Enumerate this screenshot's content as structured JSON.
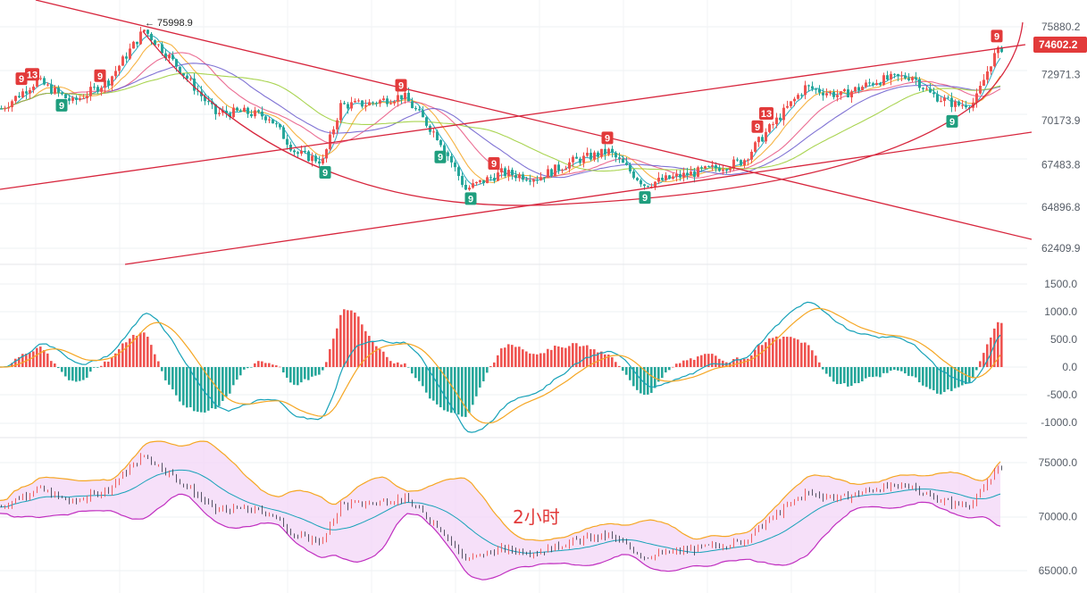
{
  "chart_data": {
    "type": "candlestick",
    "timeframe_label": "2小时",
    "current_price": "74602.2",
    "peak_label": "75998.9",
    "colors": {
      "up": "#ef5350",
      "down": "#26a69a",
      "trendline": "#d7263d",
      "ma_short": "#17a2b8",
      "ma_mid": "#f5a623",
      "ma_long1": "#e75480",
      "ma_long2": "#6a5acd",
      "ma_long3": "#9acd32",
      "bb_fill": "#f3d6f7",
      "bb_upper": "#f5a623",
      "bb_lower": "#c02fc0",
      "bb_mid": "#17a2b8"
    },
    "price_panel": {
      "y_ticks": [
        "75880.2",
        "72971.3",
        "70173.9",
        "67483.8",
        "64896.8",
        "62409.9"
      ],
      "y_tick_values": [
        75880.2,
        72971.3,
        70173.9,
        67483.8,
        64896.8,
        62409.9
      ]
    },
    "macd_panel": {
      "y_ticks": [
        "1500.0",
        "1000.0",
        "500.0",
        "0.0",
        "-500.0",
        "-1000.0"
      ],
      "y_tick_values": [
        1500,
        1000,
        500,
        0,
        -500,
        -1000
      ]
    },
    "boll_panel": {
      "y_ticks": [
        "75000.0",
        "70000.0",
        "65000.0"
      ],
      "y_tick_values": [
        75000,
        70000,
        65000
      ]
    },
    "anchors": {
      "x": [
        0,
        40,
        80,
        120,
        160,
        200,
        240,
        270,
        300,
        330,
        360,
        380,
        410,
        450,
        490,
        520,
        560,
        600,
        640,
        680,
        720,
        760,
        800,
        830,
        860,
        900,
        940,
        980,
        1020,
        1040,
        1070,
        1090,
        1110,
        1120
      ],
      "close": [
        70900,
        72600,
        71300,
        72600,
        75700,
        73300,
        70600,
        70700,
        70400,
        68200,
        67700,
        71100,
        71200,
        71700,
        69100,
        66000,
        67000,
        66700,
        67700,
        68300,
        66300,
        66800,
        67300,
        67700,
        69700,
        72200,
        71700,
        72600,
        72900,
        71800,
        71100,
        71300,
        74000,
        74602
      ]
    },
    "td_markers": [
      {
        "label": "9",
        "x": 24,
        "kind": "sell"
      },
      {
        "label": "13",
        "x": 36,
        "kind": "sell"
      },
      {
        "label": "9",
        "x": 112,
        "kind": "sell"
      },
      {
        "label": "9",
        "x": 69,
        "kind": "buy"
      },
      {
        "label": "9",
        "x": 449,
        "kind": "sell"
      },
      {
        "label": "9",
        "x": 364,
        "kind": "buy"
      },
      {
        "label": "9",
        "x": 493,
        "kind": "buy"
      },
      {
        "label": "9",
        "x": 527,
        "kind": "buy"
      },
      {
        "label": "9",
        "x": 553,
        "kind": "sell"
      },
      {
        "label": "9",
        "x": 680,
        "kind": "sell"
      },
      {
        "label": "9",
        "x": 722,
        "kind": "buy"
      },
      {
        "label": "9",
        "x": 848,
        "kind": "sell"
      },
      {
        "label": "13",
        "x": 858,
        "kind": "sell"
      },
      {
        "label": "9",
        "x": 1066,
        "kind": "buy"
      },
      {
        "label": "9",
        "x": 1116,
        "kind": "sell"
      }
    ]
  }
}
